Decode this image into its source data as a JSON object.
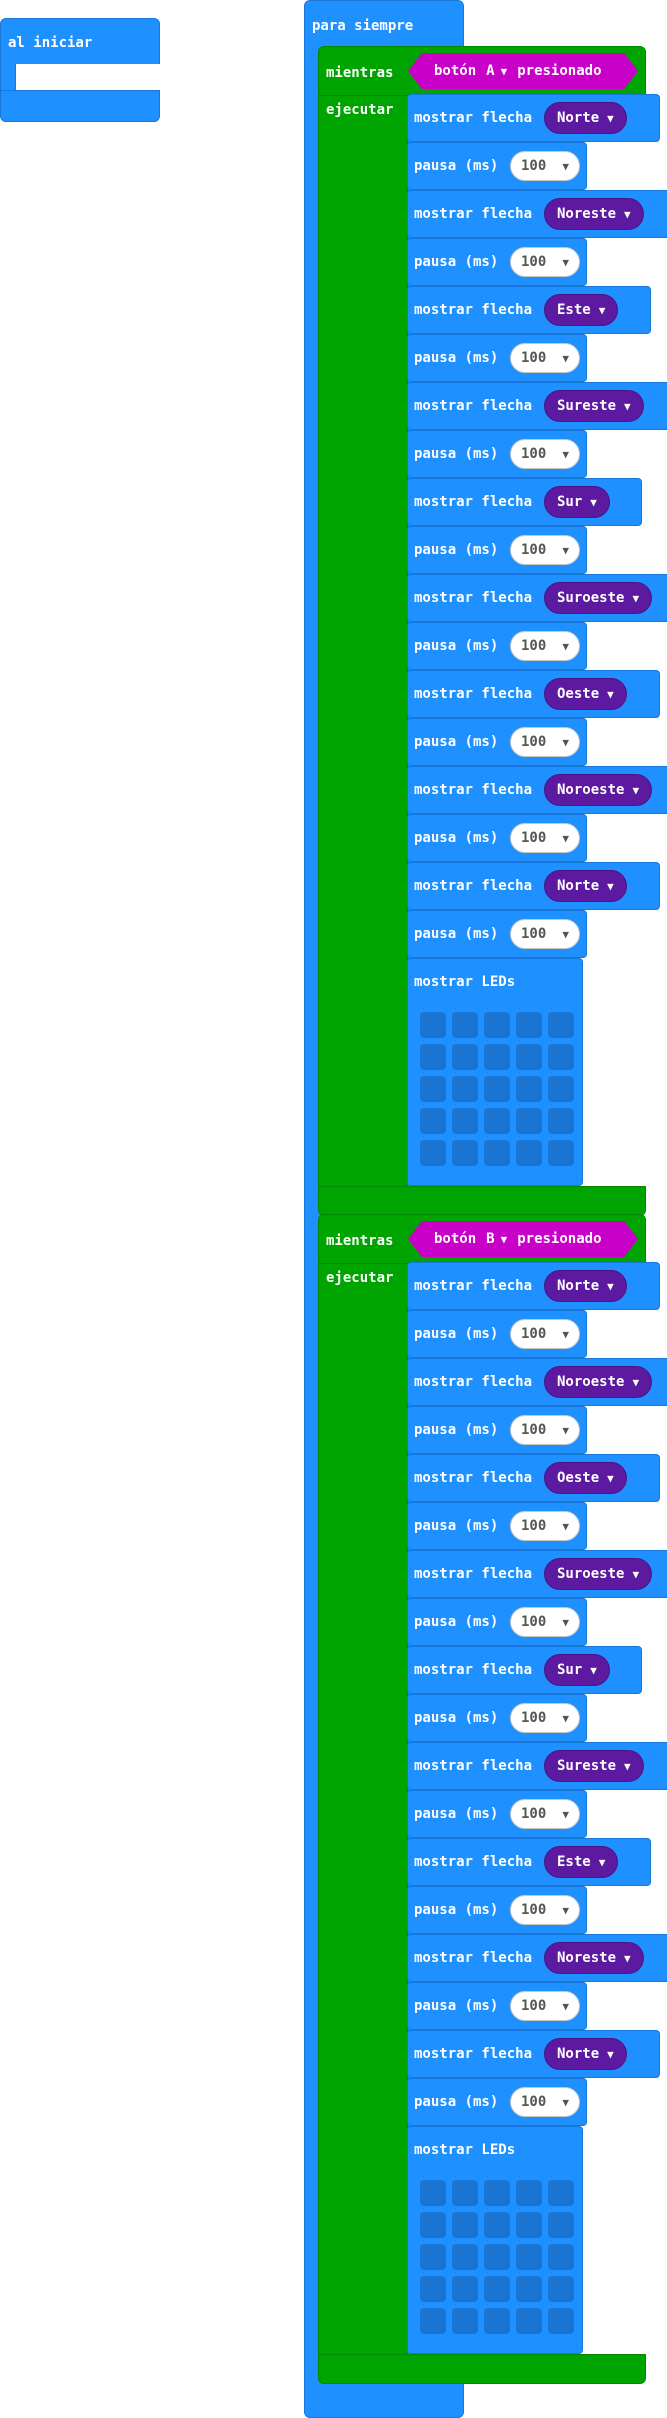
{
  "on_start": {
    "label": "al iniciar"
  },
  "forever": {
    "label": "para siempre"
  },
  "loops": [
    {
      "while_label": "mientras",
      "do_label": "ejecutar",
      "condition": {
        "prefix": "botón",
        "button": "A",
        "suffix": "presionado"
      },
      "steps": [
        {
          "type": "arrow",
          "label": "mostrar flecha",
          "value": "Norte"
        },
        {
          "type": "pause",
          "label": "pausa (ms)",
          "value": "100"
        },
        {
          "type": "arrow",
          "label": "mostrar flecha",
          "value": "Noreste"
        },
        {
          "type": "pause",
          "label": "pausa (ms)",
          "value": "100"
        },
        {
          "type": "arrow",
          "label": "mostrar flecha",
          "value": "Este"
        },
        {
          "type": "pause",
          "label": "pausa (ms)",
          "value": "100"
        },
        {
          "type": "arrow",
          "label": "mostrar flecha",
          "value": "Sureste"
        },
        {
          "type": "pause",
          "label": "pausa (ms)",
          "value": "100"
        },
        {
          "type": "arrow",
          "label": "mostrar flecha",
          "value": "Sur"
        },
        {
          "type": "pause",
          "label": "pausa (ms)",
          "value": "100"
        },
        {
          "type": "arrow",
          "label": "mostrar flecha",
          "value": "Suroeste"
        },
        {
          "type": "pause",
          "label": "pausa (ms)",
          "value": "100"
        },
        {
          "type": "arrow",
          "label": "mostrar flecha",
          "value": "Oeste"
        },
        {
          "type": "pause",
          "label": "pausa (ms)",
          "value": "100"
        },
        {
          "type": "arrow",
          "label": "mostrar flecha",
          "value": "Noroeste"
        },
        {
          "type": "pause",
          "label": "pausa (ms)",
          "value": "100"
        },
        {
          "type": "arrow",
          "label": "mostrar flecha",
          "value": "Norte"
        },
        {
          "type": "pause",
          "label": "pausa (ms)",
          "value": "100"
        },
        {
          "type": "leds",
          "label": "mostrar LEDs"
        }
      ]
    },
    {
      "while_label": "mientras",
      "do_label": "ejecutar",
      "condition": {
        "prefix": "botón",
        "button": "B",
        "suffix": "presionado"
      },
      "steps": [
        {
          "type": "arrow",
          "label": "mostrar flecha",
          "value": "Norte"
        },
        {
          "type": "pause",
          "label": "pausa (ms)",
          "value": "100"
        },
        {
          "type": "arrow",
          "label": "mostrar flecha",
          "value": "Noroeste"
        },
        {
          "type": "pause",
          "label": "pausa (ms)",
          "value": "100"
        },
        {
          "type": "arrow",
          "label": "mostrar flecha",
          "value": "Oeste"
        },
        {
          "type": "pause",
          "label": "pausa (ms)",
          "value": "100"
        },
        {
          "type": "arrow",
          "label": "mostrar flecha",
          "value": "Suroeste"
        },
        {
          "type": "pause",
          "label": "pausa (ms)",
          "value": "100"
        },
        {
          "type": "arrow",
          "label": "mostrar flecha",
          "value": "Sur"
        },
        {
          "type": "pause",
          "label": "pausa (ms)",
          "value": "100"
        },
        {
          "type": "arrow",
          "label": "mostrar flecha",
          "value": "Sureste"
        },
        {
          "type": "pause",
          "label": "pausa (ms)",
          "value": "100"
        },
        {
          "type": "arrow",
          "label": "mostrar flecha",
          "value": "Este"
        },
        {
          "type": "pause",
          "label": "pausa (ms)",
          "value": "100"
        },
        {
          "type": "arrow",
          "label": "mostrar flecha",
          "value": "Noreste"
        },
        {
          "type": "pause",
          "label": "pausa (ms)",
          "value": "100"
        },
        {
          "type": "arrow",
          "label": "mostrar flecha",
          "value": "Norte"
        },
        {
          "type": "pause",
          "label": "pausa (ms)",
          "value": "100"
        },
        {
          "type": "leds",
          "label": "mostrar LEDs"
        }
      ]
    }
  ],
  "icons": {
    "dropdown": "caret-down-icon",
    "led": "led-cell"
  },
  "colors": {
    "basic_blue": "#1e90ff",
    "loops_green": "#00a400",
    "input_magenta": "#c800c8",
    "arrow_purple": "#5c1aa0",
    "led_off": "#1a75d2"
  }
}
